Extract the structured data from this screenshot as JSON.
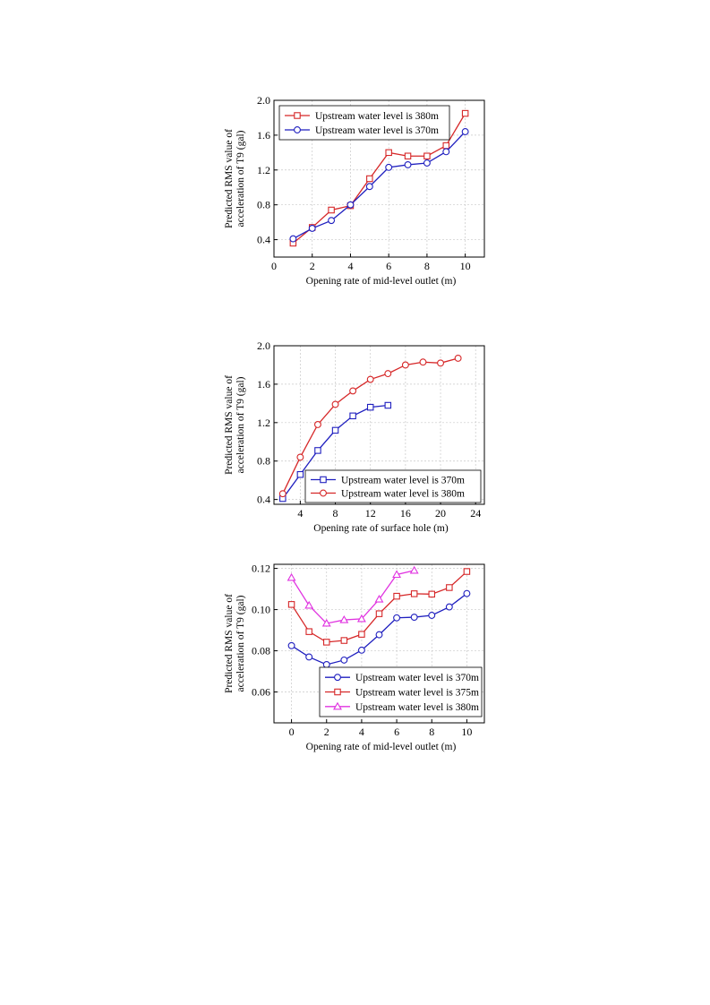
{
  "chart_data": [
    {
      "type": "line",
      "xlabel": "Opening rate of mid-level outlet (m)",
      "ylabel_lines": [
        "Predicted RMS value of",
        "acceleration of T9 (gal)"
      ],
      "xlim": [
        0,
        11
      ],
      "ylim": [
        0.2,
        2.0
      ],
      "xticks": [
        0,
        2,
        4,
        6,
        8,
        10
      ],
      "yticks": [
        0.4,
        0.8,
        1.2,
        1.6,
        2.0
      ],
      "xtick_labels": [
        "0",
        "2",
        "4",
        "6",
        "8",
        "10"
      ],
      "ytick_labels": [
        "0.4",
        "0.8",
        "1.2",
        "1.6",
        "2.0"
      ],
      "grid": true,
      "legend_position": "top-left",
      "series": [
        {
          "name": "Upstream water level is 380m",
          "color": "#d62728",
          "marker": "square",
          "x": [
            1,
            2,
            3,
            4,
            5,
            6,
            7,
            8,
            9,
            10
          ],
          "y": [
            0.36,
            0.54,
            0.74,
            0.79,
            1.1,
            1.4,
            1.36,
            1.36,
            1.48,
            1.85
          ]
        },
        {
          "name": "Upstream water level is 370m",
          "color": "#1f1fbf",
          "marker": "circle",
          "x": [
            1,
            2,
            3,
            4,
            5,
            6,
            7,
            8,
            9,
            10
          ],
          "y": [
            0.41,
            0.53,
            0.62,
            0.8,
            1.01,
            1.23,
            1.26,
            1.28,
            1.41,
            1.64
          ]
        }
      ]
    },
    {
      "type": "line",
      "xlabel": "Opening rate of surface hole (m)",
      "ylabel_lines": [
        "Predicted RMS value of",
        "acceleration of T9 (gal)"
      ],
      "xlim": [
        1,
        25
      ],
      "ylim": [
        0.35,
        2.0
      ],
      "xticks": [
        4,
        8,
        12,
        16,
        20,
        24
      ],
      "yticks": [
        0.4,
        0.8,
        1.2,
        1.6,
        2.0
      ],
      "xtick_labels": [
        "4",
        "8",
        "12",
        "16",
        "20",
        "24"
      ],
      "ytick_labels": [
        "0.4",
        "0.8",
        "1.2",
        "1.6",
        "2.0"
      ],
      "grid": true,
      "legend_position": "bottom-right",
      "series": [
        {
          "name": "Upstream water level is 370m",
          "color": "#1f1fbf",
          "marker": "square",
          "x": [
            2,
            4,
            6,
            8,
            10,
            12,
            14
          ],
          "y": [
            0.41,
            0.66,
            0.91,
            1.12,
            1.27,
            1.36,
            1.38
          ]
        },
        {
          "name": "Upstream water level is 380m",
          "color": "#d62728",
          "marker": "circle",
          "x": [
            2,
            4,
            6,
            8,
            10,
            12,
            14,
            16,
            18,
            20,
            22
          ],
          "y": [
            0.46,
            0.84,
            1.18,
            1.39,
            1.53,
            1.65,
            1.71,
            1.8,
            1.83,
            1.82,
            1.87
          ]
        }
      ]
    },
    {
      "type": "line",
      "xlabel": "Opening rate of mid-level outlet (m)",
      "ylabel_lines": [
        "Predicted RMS value of",
        "acceleration of T9 (gal)"
      ],
      "xlim": [
        -1,
        11
      ],
      "ylim": [
        0.045,
        0.122
      ],
      "xticks": [
        0,
        2,
        4,
        6,
        8,
        10
      ],
      "yticks": [
        0.06,
        0.08,
        0.1,
        0.12
      ],
      "xtick_labels": [
        "0",
        "2",
        "4",
        "6",
        "8",
        "10"
      ],
      "ytick_labels": [
        "0.06",
        "0.08",
        "0.10",
        "0.12"
      ],
      "grid": true,
      "legend_position": "bottom-right",
      "series": [
        {
          "name": "Upstream water level is 370m",
          "color": "#1f1fbf",
          "marker": "circle",
          "x": [
            0,
            1,
            2,
            3,
            4,
            5,
            6,
            7,
            8,
            9,
            10
          ],
          "y": [
            0.0825,
            0.077,
            0.0733,
            0.0755,
            0.0803,
            0.0878,
            0.096,
            0.0963,
            0.0972,
            0.1013,
            0.1078
          ]
        },
        {
          "name": "Upstream water level is 375m",
          "color": "#d62728",
          "marker": "square",
          "x": [
            0,
            1,
            2,
            3,
            4,
            5,
            6,
            7,
            8,
            9,
            10
          ],
          "y": [
            0.1025,
            0.0893,
            0.0842,
            0.085,
            0.088,
            0.098,
            0.1065,
            0.1077,
            0.1075,
            0.1107,
            0.1185
          ]
        },
        {
          "name": "Upstream water level is 380m",
          "color": "#e033e0",
          "marker": "triangle",
          "x": [
            0,
            1,
            2,
            3,
            4,
            5,
            6,
            7
          ],
          "y": [
            0.1155,
            0.102,
            0.0933,
            0.095,
            0.0955,
            0.105,
            0.117,
            0.119
          ]
        }
      ]
    }
  ]
}
